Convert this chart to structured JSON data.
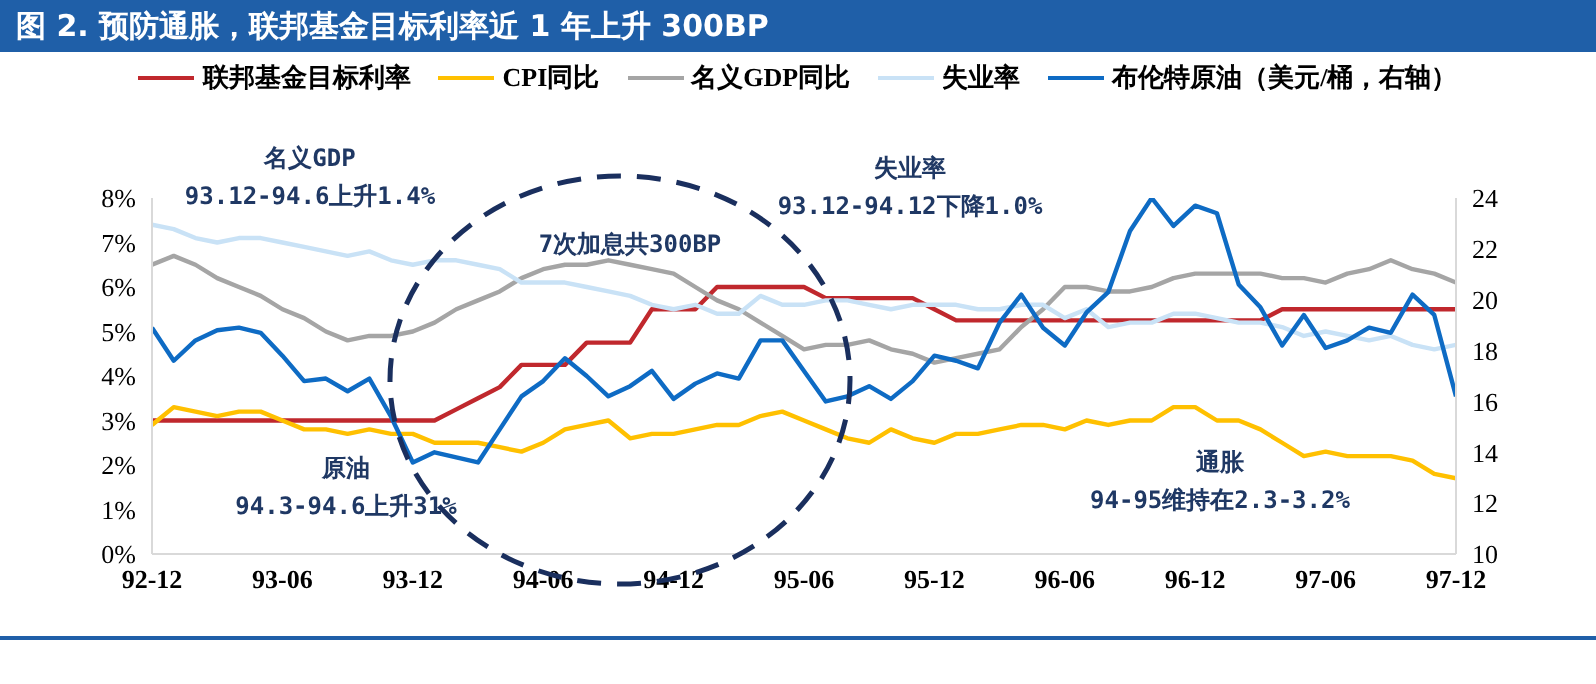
{
  "chart_data": {
    "type": "line",
    "title": "图 2. 预防通胀，联邦基金目标利率近 1 年上升 300BP",
    "categories": [
      "92-12",
      null,
      null,
      null,
      null,
      null,
      "93-06",
      null,
      null,
      null,
      null,
      null,
      "93-12",
      null,
      null,
      null,
      null,
      null,
      "94-06",
      null,
      null,
      null,
      null,
      null,
      "94-12",
      null,
      null,
      null,
      null,
      null,
      "95-06",
      null,
      null,
      null,
      null,
      null,
      "95-12",
      null,
      null,
      null,
      null,
      null,
      "96-06",
      null,
      null,
      null,
      null,
      null,
      "96-12",
      null,
      null,
      null,
      null,
      null,
      "97-06",
      null,
      null,
      null,
      null,
      null,
      "97-12"
    ],
    "series": [
      {
        "name": "联邦基金目标利率",
        "color": "#c0282d",
        "values": [
          3,
          3,
          3,
          3,
          3,
          3,
          3,
          3,
          3,
          3,
          3,
          3,
          3,
          3,
          3.25,
          3.5,
          3.75,
          4.25,
          4.25,
          4.25,
          4.75,
          4.75,
          4.75,
          5.5,
          5.5,
          5.5,
          6,
          6,
          6,
          6,
          6,
          5.75,
          5.75,
          5.75,
          5.75,
          5.75,
          5.5,
          5.25,
          5.25,
          5.25,
          5.25,
          5.25,
          5.25,
          5.25,
          5.25,
          5.25,
          5.25,
          5.25,
          5.25,
          5.25,
          5.25,
          5.25,
          5.5,
          5.5,
          5.5,
          5.5,
          5.5,
          5.5,
          5.5,
          5.5,
          5.5
        ]
      },
      {
        "name": "CPI同比",
        "color": "#ffc000",
        "values": [
          2.9,
          3.3,
          3.2,
          3.1,
          3.2,
          3.2,
          3.0,
          2.8,
          2.8,
          2.7,
          2.8,
          2.7,
          2.7,
          2.5,
          2.5,
          2.5,
          2.4,
          2.3,
          2.5,
          2.8,
          2.9,
          3.0,
          2.6,
          2.7,
          2.7,
          2.8,
          2.9,
          2.9,
          3.1,
          3.2,
          3.0,
          2.8,
          2.6,
          2.5,
          2.8,
          2.6,
          2.5,
          2.7,
          2.7,
          2.8,
          2.9,
          2.9,
          2.8,
          3.0,
          2.9,
          3.0,
          3.0,
          3.3,
          3.3,
          3.0,
          3.0,
          2.8,
          2.5,
          2.2,
          2.3,
          2.2,
          2.2,
          2.2,
          2.1,
          1.8,
          1.7
        ]
      },
      {
        "name": "名义GDP同比",
        "color": "#a5a5a5",
        "values": [
          6.5,
          6.7,
          6.5,
          6.2,
          6.0,
          5.8,
          5.5,
          5.3,
          5.0,
          4.8,
          4.9,
          4.9,
          5.0,
          5.2,
          5.5,
          5.7,
          5.9,
          6.2,
          6.4,
          6.5,
          6.5,
          6.6,
          6.5,
          6.4,
          6.3,
          6.0,
          5.7,
          5.5,
          5.2,
          4.9,
          4.6,
          4.7,
          4.7,
          4.8,
          4.6,
          4.5,
          4.3,
          4.4,
          4.5,
          4.6,
          5.1,
          5.5,
          6.0,
          6.0,
          5.9,
          5.9,
          6.0,
          6.2,
          6.3,
          6.3,
          6.3,
          6.3,
          6.2,
          6.2,
          6.1,
          6.3,
          6.4,
          6.6,
          6.4,
          6.3,
          6.1
        ]
      },
      {
        "name": "失业率",
        "color": "#c9e2f6",
        "values": [
          7.4,
          7.3,
          7.1,
          7.0,
          7.1,
          7.1,
          7.0,
          6.9,
          6.8,
          6.7,
          6.8,
          6.6,
          6.5,
          6.6,
          6.6,
          6.5,
          6.4,
          6.1,
          6.1,
          6.1,
          6.0,
          5.9,
          5.8,
          5.6,
          5.5,
          5.6,
          5.4,
          5.4,
          5.8,
          5.6,
          5.6,
          5.7,
          5.7,
          5.6,
          5.5,
          5.6,
          5.6,
          5.6,
          5.5,
          5.5,
          5.6,
          5.6,
          5.3,
          5.5,
          5.1,
          5.2,
          5.2,
          5.4,
          5.4,
          5.3,
          5.2,
          5.2,
          5.1,
          4.9,
          5.0,
          4.9,
          4.8,
          4.9,
          4.7,
          4.6,
          4.7
        ]
      },
      {
        "name": "布伦特原油（美元/桶，右轴）",
        "color": "#0e6bc4",
        "axis": "y2",
        "values": [
          18.9,
          17.6,
          18.4,
          18.8,
          18.9,
          18.7,
          17.8,
          16.8,
          16.9,
          16.4,
          16.9,
          15.4,
          13.6,
          14.0,
          13.8,
          13.6,
          14.9,
          16.2,
          16.8,
          17.7,
          17.0,
          16.2,
          16.6,
          17.2,
          16.1,
          16.7,
          17.1,
          16.9,
          18.4,
          18.4,
          17.2,
          16.0,
          16.2,
          16.6,
          16.1,
          16.8,
          17.8,
          17.6,
          17.3,
          19.1,
          20.2,
          18.9,
          18.2,
          19.5,
          20.3,
          22.7,
          24.0,
          22.9,
          23.7,
          23.4,
          20.6,
          19.7,
          18.2,
          19.4,
          18.1,
          18.4,
          18.9,
          18.7,
          20.2,
          19.4,
          16.2
        ]
      }
    ],
    "ylim": [
      0,
      8
    ],
    "yticks": [
      {
        "value": 0,
        "label": "0%"
      },
      {
        "value": 1,
        "label": "1%"
      },
      {
        "value": 2,
        "label": "2%"
      },
      {
        "value": 3,
        "label": "3%"
      },
      {
        "value": 4,
        "label": "4%"
      },
      {
        "value": 5,
        "label": "5%"
      },
      {
        "value": 6,
        "label": "6%"
      },
      {
        "value": 7,
        "label": "7%"
      },
      {
        "value": 8,
        "label": "8%"
      }
    ],
    "y2lim": [
      10,
      24
    ],
    "y2ticks": [
      10,
      12,
      14,
      16,
      18,
      20,
      22,
      24
    ],
    "legend": "top",
    "marker": "none",
    "annotations": [
      "名义GDP\n93.12-94.6上升1.4%",
      "7次加息共300BP",
      "失业率\n93.12-94.12下降1.0%",
      "原油\n94.3-94.6上升31%",
      "通胀\n94-95维持在2.3-3.2%"
    ]
  }
}
